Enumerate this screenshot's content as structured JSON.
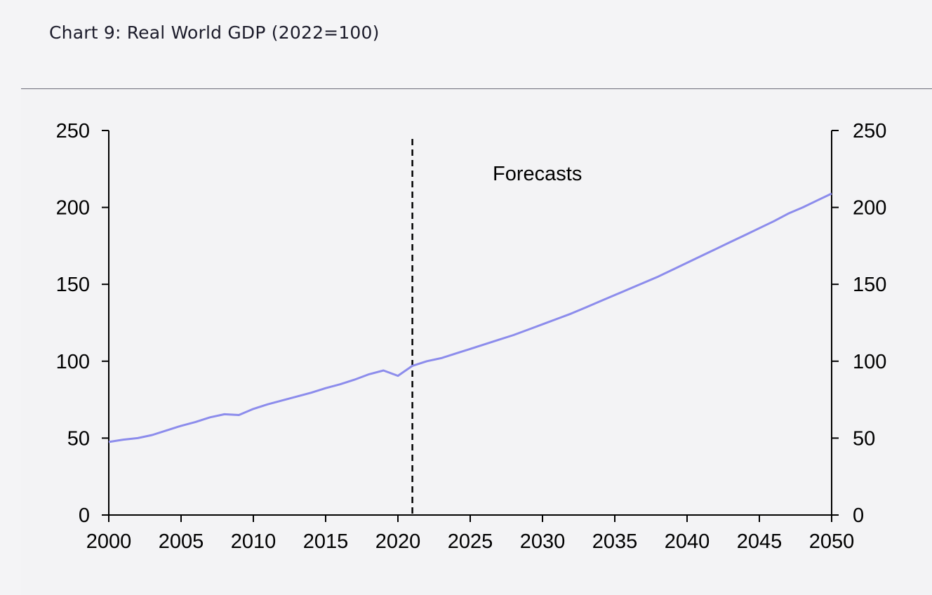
{
  "title": "Chart 9: Real World GDP (2022=100)",
  "chart_data": {
    "type": "line",
    "title": "Chart 9: Real World GDP (2022=100)",
    "xlabel": "",
    "ylabel": "",
    "xlim": [
      2000,
      2050
    ],
    "ylim": [
      0,
      250
    ],
    "x_ticks": [
      "2000",
      "2005",
      "2010",
      "2015",
      "2020",
      "2025",
      "2030",
      "2035",
      "2040",
      "2045",
      "2050"
    ],
    "y_ticks_left": [
      "250",
      "200",
      "150",
      "100",
      "50",
      "0"
    ],
    "y_ticks_right": [
      "250",
      "200",
      "150",
      "100",
      "50",
      "0"
    ],
    "grid": false,
    "series_color": "#8c8cec",
    "forecast_line_x": 2021,
    "annotation": "Forecasts",
    "series": [
      {
        "x": [
          2000,
          2001,
          2002,
          2003,
          2004,
          2005,
          2006,
          2007,
          2008,
          2009,
          2010,
          2011,
          2012,
          2013,
          2014,
          2015,
          2016,
          2017,
          2018,
          2019,
          2020,
          2021,
          2022,
          2023,
          2024,
          2025,
          2026,
          2027,
          2028,
          2029,
          2030,
          2031,
          2032,
          2033,
          2034,
          2035,
          2036,
          2037,
          2038,
          2039,
          2040,
          2041,
          2042,
          2043,
          2044,
          2045,
          2046,
          2047,
          2048,
          2049,
          2050
        ],
        "values": [
          47.5,
          49,
          50,
          52,
          55,
          58,
          60.5,
          63.5,
          65.5,
          65,
          69,
          72,
          74.5,
          77,
          79.5,
          82.5,
          85,
          88,
          91.5,
          94,
          90.5,
          97,
          100,
          102,
          105,
          108,
          111,
          114,
          117,
          120.5,
          124,
          127.5,
          131,
          135,
          139,
          143,
          147,
          151,
          155,
          159.5,
          164,
          168.5,
          173,
          177.5,
          182,
          186.5,
          191,
          196,
          200,
          204.5,
          209
        ]
      }
    ]
  }
}
